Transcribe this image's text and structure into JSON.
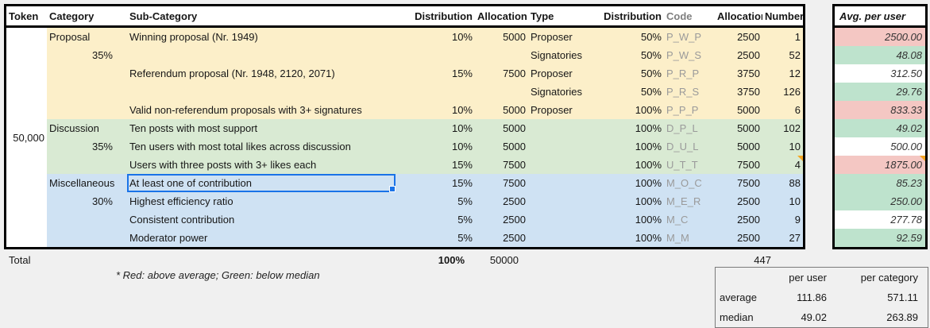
{
  "colors": {
    "section_proposal": "#fcefc9",
    "section_discussion": "#d9ead3",
    "section_miscellaneous": "#cfe2f3",
    "above_average": "#f4c7c3",
    "below_median": "#bee3cd",
    "plain": "#ffffff",
    "selection_blue": "#1a73e8",
    "note_orange": "#f5a623",
    "code_text_gray": "#9a9a9a"
  },
  "main_table": {
    "columns": [
      "Token",
      "Category",
      "Sub-Category",
      "Distribution",
      "Allocation",
      "Type",
      "Distribution",
      "Code",
      "Allocation",
      "Number"
    ],
    "token_total": "50,000",
    "rows": [
      {
        "section": "proposal",
        "category": "Proposal",
        "category_style": "label",
        "sub_category": "Winning proposal (Nr. 1949)",
        "distribution": "10%",
        "allocation": "5000",
        "type": "Proposer",
        "distribution2": "50%",
        "code": "P_W_P",
        "allocation2": "2500",
        "number": "1",
        "avg": "2500.00",
        "avg_status": "above_average"
      },
      {
        "section": "proposal",
        "category": "35%",
        "category_style": "pct",
        "sub_category": "",
        "distribution": "",
        "allocation": "",
        "type": "Signatories",
        "distribution2": "50%",
        "code": "P_W_S",
        "allocation2": "2500",
        "number": "52",
        "avg": "48.08",
        "avg_status": "below_median"
      },
      {
        "section": "proposal",
        "category": "",
        "category_style": "label",
        "sub_category": "Referendum proposal (Nr. 1948, 2120, 2071)",
        "distribution": "15%",
        "allocation": "7500",
        "type": "Proposer",
        "distribution2": "50%",
        "code": "P_R_P",
        "allocation2": "3750",
        "number": "12",
        "avg": "312.50",
        "avg_status": "none"
      },
      {
        "section": "proposal",
        "category": "",
        "category_style": "label",
        "sub_category": "",
        "distribution": "",
        "allocation": "",
        "type": "Signatories",
        "distribution2": "50%",
        "code": "P_R_S",
        "allocation2": "3750",
        "number": "126",
        "avg": "29.76",
        "avg_status": "below_median"
      },
      {
        "section": "proposal",
        "category": "",
        "category_style": "label",
        "sub_category": "Valid non-referendum proposals with 3+ signatures",
        "distribution": "10%",
        "allocation": "5000",
        "type": "Proposer",
        "distribution2": "100%",
        "code": "P_P_P",
        "allocation2": "5000",
        "number": "6",
        "avg": "833.33",
        "avg_status": "above_average"
      },
      {
        "section": "discussion",
        "category": "Discussion",
        "category_style": "label",
        "sub_category": "Ten posts with most support",
        "distribution": "10%",
        "allocation": "5000",
        "type": "",
        "distribution2": "100%",
        "code": "D_P_L",
        "allocation2": "5000",
        "number": "102",
        "avg": "49.02",
        "avg_status": "below_median"
      },
      {
        "section": "discussion",
        "category": "35%",
        "category_style": "pct",
        "sub_category": "Ten users with most total likes across discussion",
        "distribution": "10%",
        "allocation": "5000",
        "type": "",
        "distribution2": "100%",
        "code": "D_U_L",
        "allocation2": "5000",
        "number": "10",
        "avg": "500.00",
        "avg_status": "none"
      },
      {
        "section": "discussion",
        "category": "",
        "category_style": "label",
        "sub_category": "Users with three posts with 3+ likes each",
        "distribution": "15%",
        "allocation": "7500",
        "type": "",
        "distribution2": "100%",
        "code": "U_T_T",
        "allocation2": "7500",
        "number": "4",
        "avg": "1875.00",
        "avg_status": "above_average",
        "note_number": true,
        "note_avg": true
      },
      {
        "section": "miscellaneous",
        "category": "Miscellaneous",
        "category_style": "label",
        "sub_category": "At least one of contribution",
        "selected": true,
        "distribution": "15%",
        "allocation": "7500",
        "type": "",
        "distribution2": "100%",
        "code": "M_O_C",
        "allocation2": "7500",
        "number": "88",
        "avg": "85.23",
        "avg_status": "below_median"
      },
      {
        "section": "miscellaneous",
        "category": "30%",
        "category_style": "pct",
        "sub_category": "Highest efficiency ratio",
        "distribution": "5%",
        "allocation": "2500",
        "type": "",
        "distribution2": "100%",
        "code": "M_E_R",
        "allocation2": "2500",
        "number": "10",
        "avg": "250.00",
        "avg_status": "below_median"
      },
      {
        "section": "miscellaneous",
        "category": "",
        "category_style": "label",
        "sub_category": "Consistent contribution",
        "distribution": "5%",
        "allocation": "2500",
        "type": "",
        "distribution2": "100%",
        "code": "M_C",
        "allocation2": "2500",
        "number": "9",
        "avg": "277.78",
        "avg_status": "none"
      },
      {
        "section": "miscellaneous",
        "category": "",
        "category_style": "label",
        "sub_category": "Moderator power",
        "distribution": "5%",
        "allocation": "2500",
        "type": "",
        "distribution2": "100%",
        "code": "M_M",
        "allocation2": "2500",
        "number": "27",
        "avg": "92.59",
        "avg_status": "below_median"
      }
    ]
  },
  "avg_table": {
    "header": "Avg. per user"
  },
  "total_row": {
    "label": "Total",
    "distribution": "100%",
    "allocation": "50000",
    "number": "447"
  },
  "footnote": "* Red: above average; Green: below median",
  "summary": {
    "col_per_user": "per user",
    "col_per_category": "per category",
    "rows": [
      {
        "label": "average",
        "per_user": "111.86",
        "per_category": "571.11"
      },
      {
        "label": "median",
        "per_user": "49.02",
        "per_category": "263.89"
      }
    ]
  }
}
